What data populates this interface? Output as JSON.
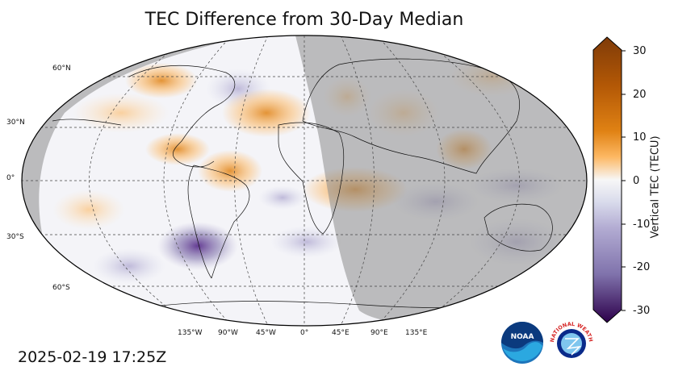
{
  "title": "TEC Difference from 30-Day Median",
  "timestamp": "2025-02-19 17:25Z",
  "colorbar": {
    "label": "Vertical TEC (TECU)",
    "ticks": [
      "30",
      "20",
      "10",
      "0",
      "-10",
      "-20",
      "-30"
    ],
    "range": [
      -30,
      30
    ],
    "colors": {
      "max": "#7f3b08",
      "high": "#e08214",
      "mid_high": "#fdb863",
      "zero": "#f7f7f7",
      "mid_low": "#b2abd2",
      "low": "#8073ac",
      "min": "#2d004b"
    }
  },
  "map": {
    "latitude_labels": [
      "60°N",
      "30°N",
      "0°",
      "30°S",
      "60°S"
    ],
    "longitude_labels": [
      "135°W",
      "90°W",
      "45°W",
      "0°",
      "45°E",
      "90°E",
      "135°E"
    ],
    "night_shade_color": "#9a9a9a"
  },
  "logos": {
    "noaa": "NOAA",
    "nws": "NATIONAL WEATHER SERVICE"
  }
}
